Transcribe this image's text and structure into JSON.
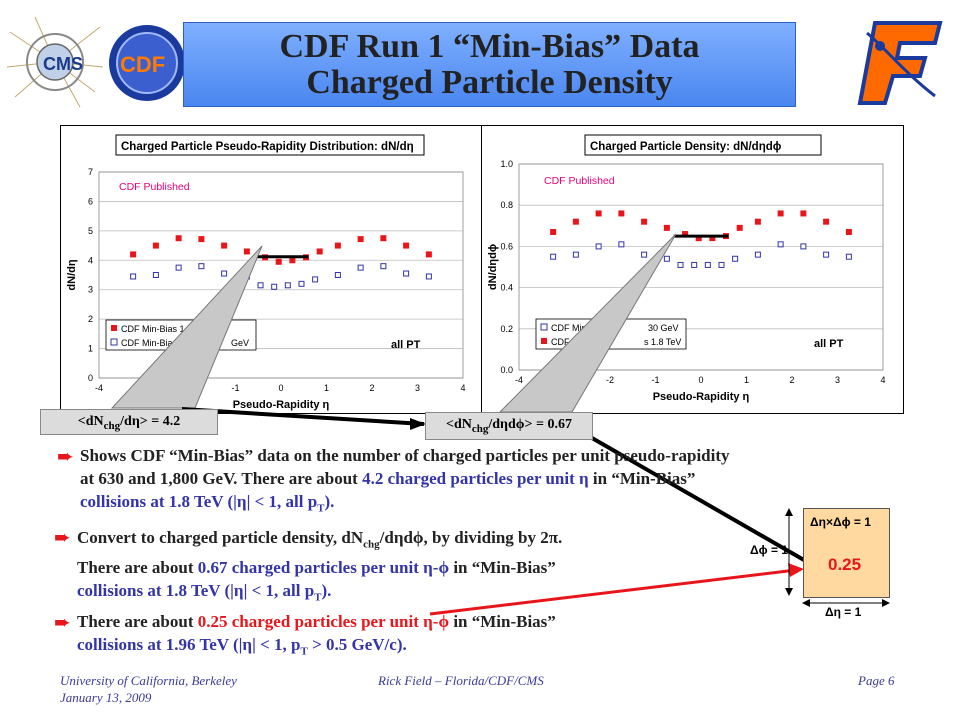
{
  "title": {
    "line1": "CDF Run 1 “Min-Bias” Data",
    "line2": "Charged Particle Density"
  },
  "logos": {
    "cms": "CMS",
    "cdf": "CDF"
  },
  "chart_data": [
    {
      "type": "scatter",
      "title": "Charged Particle Pseudo-Rapidity Distribution: dN/dη",
      "annotation": "CDF Published",
      "note": "all PT",
      "xlabel": "Pseudo-Rapidity η",
      "ylabel": "dN/dη",
      "xlim": [
        -4,
        4
      ],
      "ylim": [
        0,
        7
      ],
      "xticks": [
        "-4",
        "-3",
        "-2",
        "-1",
        "0",
        "1",
        "2",
        "3",
        "4"
      ],
      "yticks": [
        "0",
        "1",
        "2",
        "3",
        "4",
        "5",
        "6",
        "7"
      ],
      "legend": [
        "CDF Min-Bias 1.8 TeV",
        "CDF Min-Bias 630 GeV"
      ],
      "legend_visible": [
        "CDF Min-Bias 1.8",
        "CDF Min-Bias",
        "GeV"
      ],
      "series": [
        {
          "name": "CDF Min-Bias 1.8 TeV",
          "color": "#e8161a",
          "marker": "filled-square",
          "x": [
            -3.25,
            -2.75,
            -2.25,
            -1.75,
            -1.25,
            -0.75,
            -0.35,
            -0.05,
            0.25,
            0.55,
            0.85,
            1.25,
            1.75,
            2.25,
            2.75,
            3.25
          ],
          "y": [
            4.2,
            4.5,
            4.75,
            4.72,
            4.5,
            4.3,
            4.1,
            3.95,
            4.0,
            4.1,
            4.3,
            4.5,
            4.72,
            4.75,
            4.5,
            4.2
          ]
        },
        {
          "name": "CDF Min-Bias 630 GeV",
          "color": "#3333aa",
          "marker": "open-square",
          "x": [
            -3.25,
            -2.75,
            -2.25,
            -1.75,
            -1.25,
            -0.75,
            -0.45,
            -0.15,
            0.15,
            0.45,
            0.75,
            1.25,
            1.75,
            2.25,
            2.75,
            3.25
          ],
          "y": [
            3.45,
            3.5,
            3.75,
            3.8,
            3.55,
            3.45,
            3.15,
            3.1,
            3.15,
            3.2,
            3.35,
            3.5,
            3.75,
            3.8,
            3.55,
            3.45
          ]
        }
      ]
    },
    {
      "type": "scatter",
      "title": "Charged Particle Density: dN/dηdϕ",
      "annotation": "CDF Published",
      "note": "all PT",
      "xlabel": "Pseudo-Rapidity η",
      "ylabel": "dN/dηdϕ",
      "xlim": [
        -4,
        4
      ],
      "ylim": [
        0.0,
        1.0
      ],
      "xticks": [
        "-4",
        "-3",
        "-2",
        "-1",
        "0",
        "1",
        "2",
        "3",
        "4"
      ],
      "yticks": [
        "0.0",
        "0.2",
        "0.4",
        "0.6",
        "0.8",
        "1.0"
      ],
      "legend": [
        "CDF Min-Bias 630 GeV",
        "CDF Min-Bias 1.8 TeV"
      ],
      "legend_visible": [
        "CDF Min-B",
        "30 GeV",
        "CDF Mi",
        "s 1.8 TeV"
      ],
      "series": [
        {
          "name": "CDF Min-Bias 1.8 TeV",
          "color": "#e8161a",
          "marker": "filled-square",
          "x": [
            -3.25,
            -2.75,
            -2.25,
            -1.75,
            -1.25,
            -0.75,
            -0.35,
            -0.05,
            0.25,
            0.55,
            0.85,
            1.25,
            1.75,
            2.25,
            2.75,
            3.25
          ],
          "y": [
            0.67,
            0.72,
            0.76,
            0.76,
            0.72,
            0.69,
            0.66,
            0.64,
            0.64,
            0.65,
            0.69,
            0.72,
            0.76,
            0.76,
            0.72,
            0.67
          ]
        },
        {
          "name": "CDF Min-Bias 630 GeV",
          "color": "#3333aa",
          "marker": "open-square",
          "x": [
            -3.25,
            -2.75,
            -2.25,
            -1.75,
            -1.25,
            -0.75,
            -0.45,
            -0.15,
            0.15,
            0.45,
            0.75,
            1.25,
            1.75,
            2.25,
            2.75,
            3.25
          ],
          "y": [
            0.55,
            0.56,
            0.6,
            0.61,
            0.56,
            0.54,
            0.51,
            0.51,
            0.51,
            0.51,
            0.54,
            0.56,
            0.61,
            0.6,
            0.56,
            0.55
          ]
        }
      ]
    }
  ],
  "callouts": {
    "left": {
      "pre": "<dN",
      "sub": "chg",
      "post": "/dη> = 4.2"
    },
    "right": {
      "pre": "<dN",
      "sub": "chg",
      "post": "/dηdϕ> = 0.67"
    }
  },
  "bullets": {
    "b1": {
      "l1": "Shows CDF “Min-Bias” data on the number of charged particles per unit pseudo-rapidity",
      "l2a": "at 630 and 1,800 GeV.  There are about ",
      "l2b": "4.2 charged particles per unit η",
      "l2c": " in “Min-Bias”",
      "l3a": "collisions at 1.8 TeV (|η| < 1, all p",
      "l3sub": "T",
      "l3b": ")."
    },
    "b2": {
      "l1a": "Convert to charged particle density, dN",
      "l1sub": "chg",
      "l1b": "/dηdϕ, by dividing by 2π.",
      "l2a": "There are about ",
      "l2b": "0.67 charged particles per unit η-ϕ",
      "l2c": " in “Min-Bias”",
      "l3a": "collisions at 1.8 TeV (|η| < 1, all p",
      "l3sub": "T",
      "l3b": ")."
    },
    "b3": {
      "l1a": "There are about ",
      "l1b": "0.25 charged particles per unit η-ϕ",
      "l1c": " in “Min-Bias”",
      "l2a": "collisions at 1.96 TeV (|η| < 1, p",
      "l2sub": "T",
      "l2b": " > 0.5 GeV/c)."
    }
  },
  "box": {
    "top": "Δη×Δϕ = 1",
    "left": "Δϕ = 1",
    "value": "0.25",
    "bottom": "Δη = 1"
  },
  "footer": {
    "left1": "University of California, Berkeley",
    "left2": "January 13, 2009",
    "center": "Rick Field – Florida/CDF/CMS",
    "right": "Page 6"
  },
  "colors": {
    "accent_red": "#e8161a",
    "blue_text": "#3333aa",
    "title_blue": "#5b8ff5",
    "box_fill": "#ffd9a0"
  }
}
